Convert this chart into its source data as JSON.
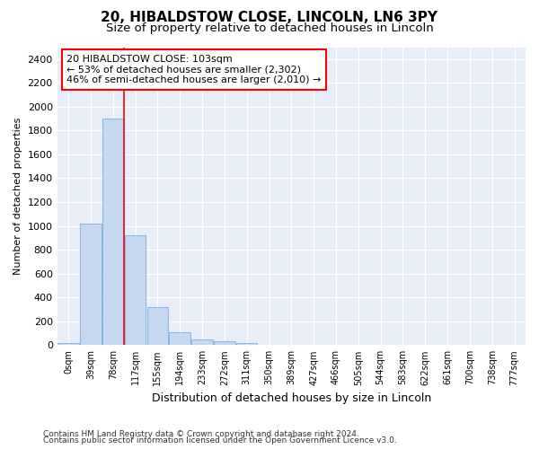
{
  "title_line1": "20, HIBALDSTOW CLOSE, LINCOLN, LN6 3PY",
  "title_line2": "Size of property relative to detached houses in Lincoln",
  "xlabel": "Distribution of detached houses by size in Lincoln",
  "ylabel": "Number of detached properties",
  "bar_color": "#c5d8f0",
  "bar_edge_color": "#7aade0",
  "background_color": "#e8eef8",
  "grid_color": "#ffffff",
  "categories": [
    "0sqm",
    "39sqm",
    "78sqm",
    "117sqm",
    "155sqm",
    "194sqm",
    "233sqm",
    "272sqm",
    "311sqm",
    "350sqm",
    "389sqm",
    "427sqm",
    "466sqm",
    "505sqm",
    "544sqm",
    "583sqm",
    "622sqm",
    "661sqm",
    "700sqm",
    "738sqm",
    "777sqm"
  ],
  "values": [
    15,
    1020,
    1900,
    920,
    320,
    110,
    50,
    30,
    20,
    0,
    0,
    0,
    0,
    0,
    0,
    0,
    0,
    0,
    0,
    0,
    0
  ],
  "ylim": [
    0,
    2500
  ],
  "yticks": [
    0,
    200,
    400,
    600,
    800,
    1000,
    1200,
    1400,
    1600,
    1800,
    2000,
    2200,
    2400
  ],
  "property_line_x": 2.5,
  "annotation_text_line1": "20 HIBALDSTOW CLOSE: 103sqm",
  "annotation_text_line2": "← 53% of detached houses are smaller (2,302)",
  "annotation_text_line3": "46% of semi-detached houses are larger (2,010) →",
  "footer_line1": "Contains HM Land Registry data © Crown copyright and database right 2024.",
  "footer_line2": "Contains public sector information licensed under the Open Government Licence v3.0."
}
